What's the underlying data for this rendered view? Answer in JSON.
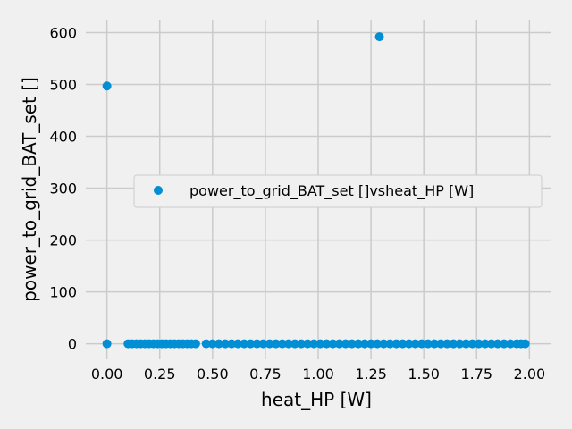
{
  "chart_data": {
    "type": "scatter",
    "xlabel": "heat_HP [W]",
    "ylabel": "power_to_grid_BAT_set []",
    "xlim": [
      -0.1,
      2.1
    ],
    "ylim": [
      -30,
      625
    ],
    "xticks": [
      0.0,
      0.25,
      0.5,
      0.75,
      1.0,
      1.25,
      1.5,
      1.75,
      2.0
    ],
    "xtick_labels": [
      "0.00",
      "0.25",
      "0.50",
      "0.75",
      "1.00",
      "1.25",
      "1.50",
      "1.75",
      "2.00"
    ],
    "yticks": [
      0,
      100,
      200,
      300,
      400,
      500,
      600
    ],
    "ytick_labels": [
      "0",
      "100",
      "200",
      "300",
      "400",
      "500",
      "600"
    ],
    "grid": true,
    "legend_position": "center-right",
    "color": "#008fd5",
    "series": [
      {
        "name": "power_to_grid_BAT_set []vsheat_HP [W]",
        "points": [
          [
            0.0,
            497
          ],
          [
            1.29,
            592
          ],
          [
            0.0,
            0
          ],
          [
            0.1,
            0
          ],
          [
            0.12,
            0
          ],
          [
            0.14,
            0
          ],
          [
            0.16,
            0
          ],
          [
            0.18,
            0
          ],
          [
            0.2,
            0
          ],
          [
            0.22,
            0
          ],
          [
            0.24,
            0
          ],
          [
            0.26,
            0
          ],
          [
            0.28,
            0
          ],
          [
            0.3,
            0
          ],
          [
            0.32,
            0
          ],
          [
            0.34,
            0
          ],
          [
            0.36,
            0
          ],
          [
            0.38,
            0
          ],
          [
            0.4,
            0
          ],
          [
            0.42,
            0
          ],
          [
            0.47,
            0
          ],
          [
            0.5,
            0
          ],
          [
            0.53,
            0
          ],
          [
            0.56,
            0
          ],
          [
            0.59,
            0
          ],
          [
            0.62,
            0
          ],
          [
            0.65,
            0
          ],
          [
            0.68,
            0
          ],
          [
            0.71,
            0
          ],
          [
            0.74,
            0
          ],
          [
            0.77,
            0
          ],
          [
            0.8,
            0
          ],
          [
            0.83,
            0
          ],
          [
            0.86,
            0
          ],
          [
            0.89,
            0
          ],
          [
            0.92,
            0
          ],
          [
            0.95,
            0
          ],
          [
            0.98,
            0
          ],
          [
            1.01,
            0
          ],
          [
            1.04,
            0
          ],
          [
            1.07,
            0
          ],
          [
            1.1,
            0
          ],
          [
            1.13,
            0
          ],
          [
            1.16,
            0
          ],
          [
            1.19,
            0
          ],
          [
            1.22,
            0
          ],
          [
            1.25,
            0
          ],
          [
            1.28,
            0
          ],
          [
            1.31,
            0
          ],
          [
            1.34,
            0
          ],
          [
            1.37,
            0
          ],
          [
            1.4,
            0
          ],
          [
            1.43,
            0
          ],
          [
            1.46,
            0
          ],
          [
            1.49,
            0
          ],
          [
            1.52,
            0
          ],
          [
            1.55,
            0
          ],
          [
            1.58,
            0
          ],
          [
            1.61,
            0
          ],
          [
            1.64,
            0
          ],
          [
            1.67,
            0
          ],
          [
            1.7,
            0
          ],
          [
            1.73,
            0
          ],
          [
            1.76,
            0
          ],
          [
            1.79,
            0
          ],
          [
            1.82,
            0
          ],
          [
            1.85,
            0
          ],
          [
            1.88,
            0
          ],
          [
            1.91,
            0
          ],
          [
            1.94,
            0
          ],
          [
            1.96,
            0
          ],
          [
            1.98,
            0
          ]
        ]
      }
    ]
  }
}
